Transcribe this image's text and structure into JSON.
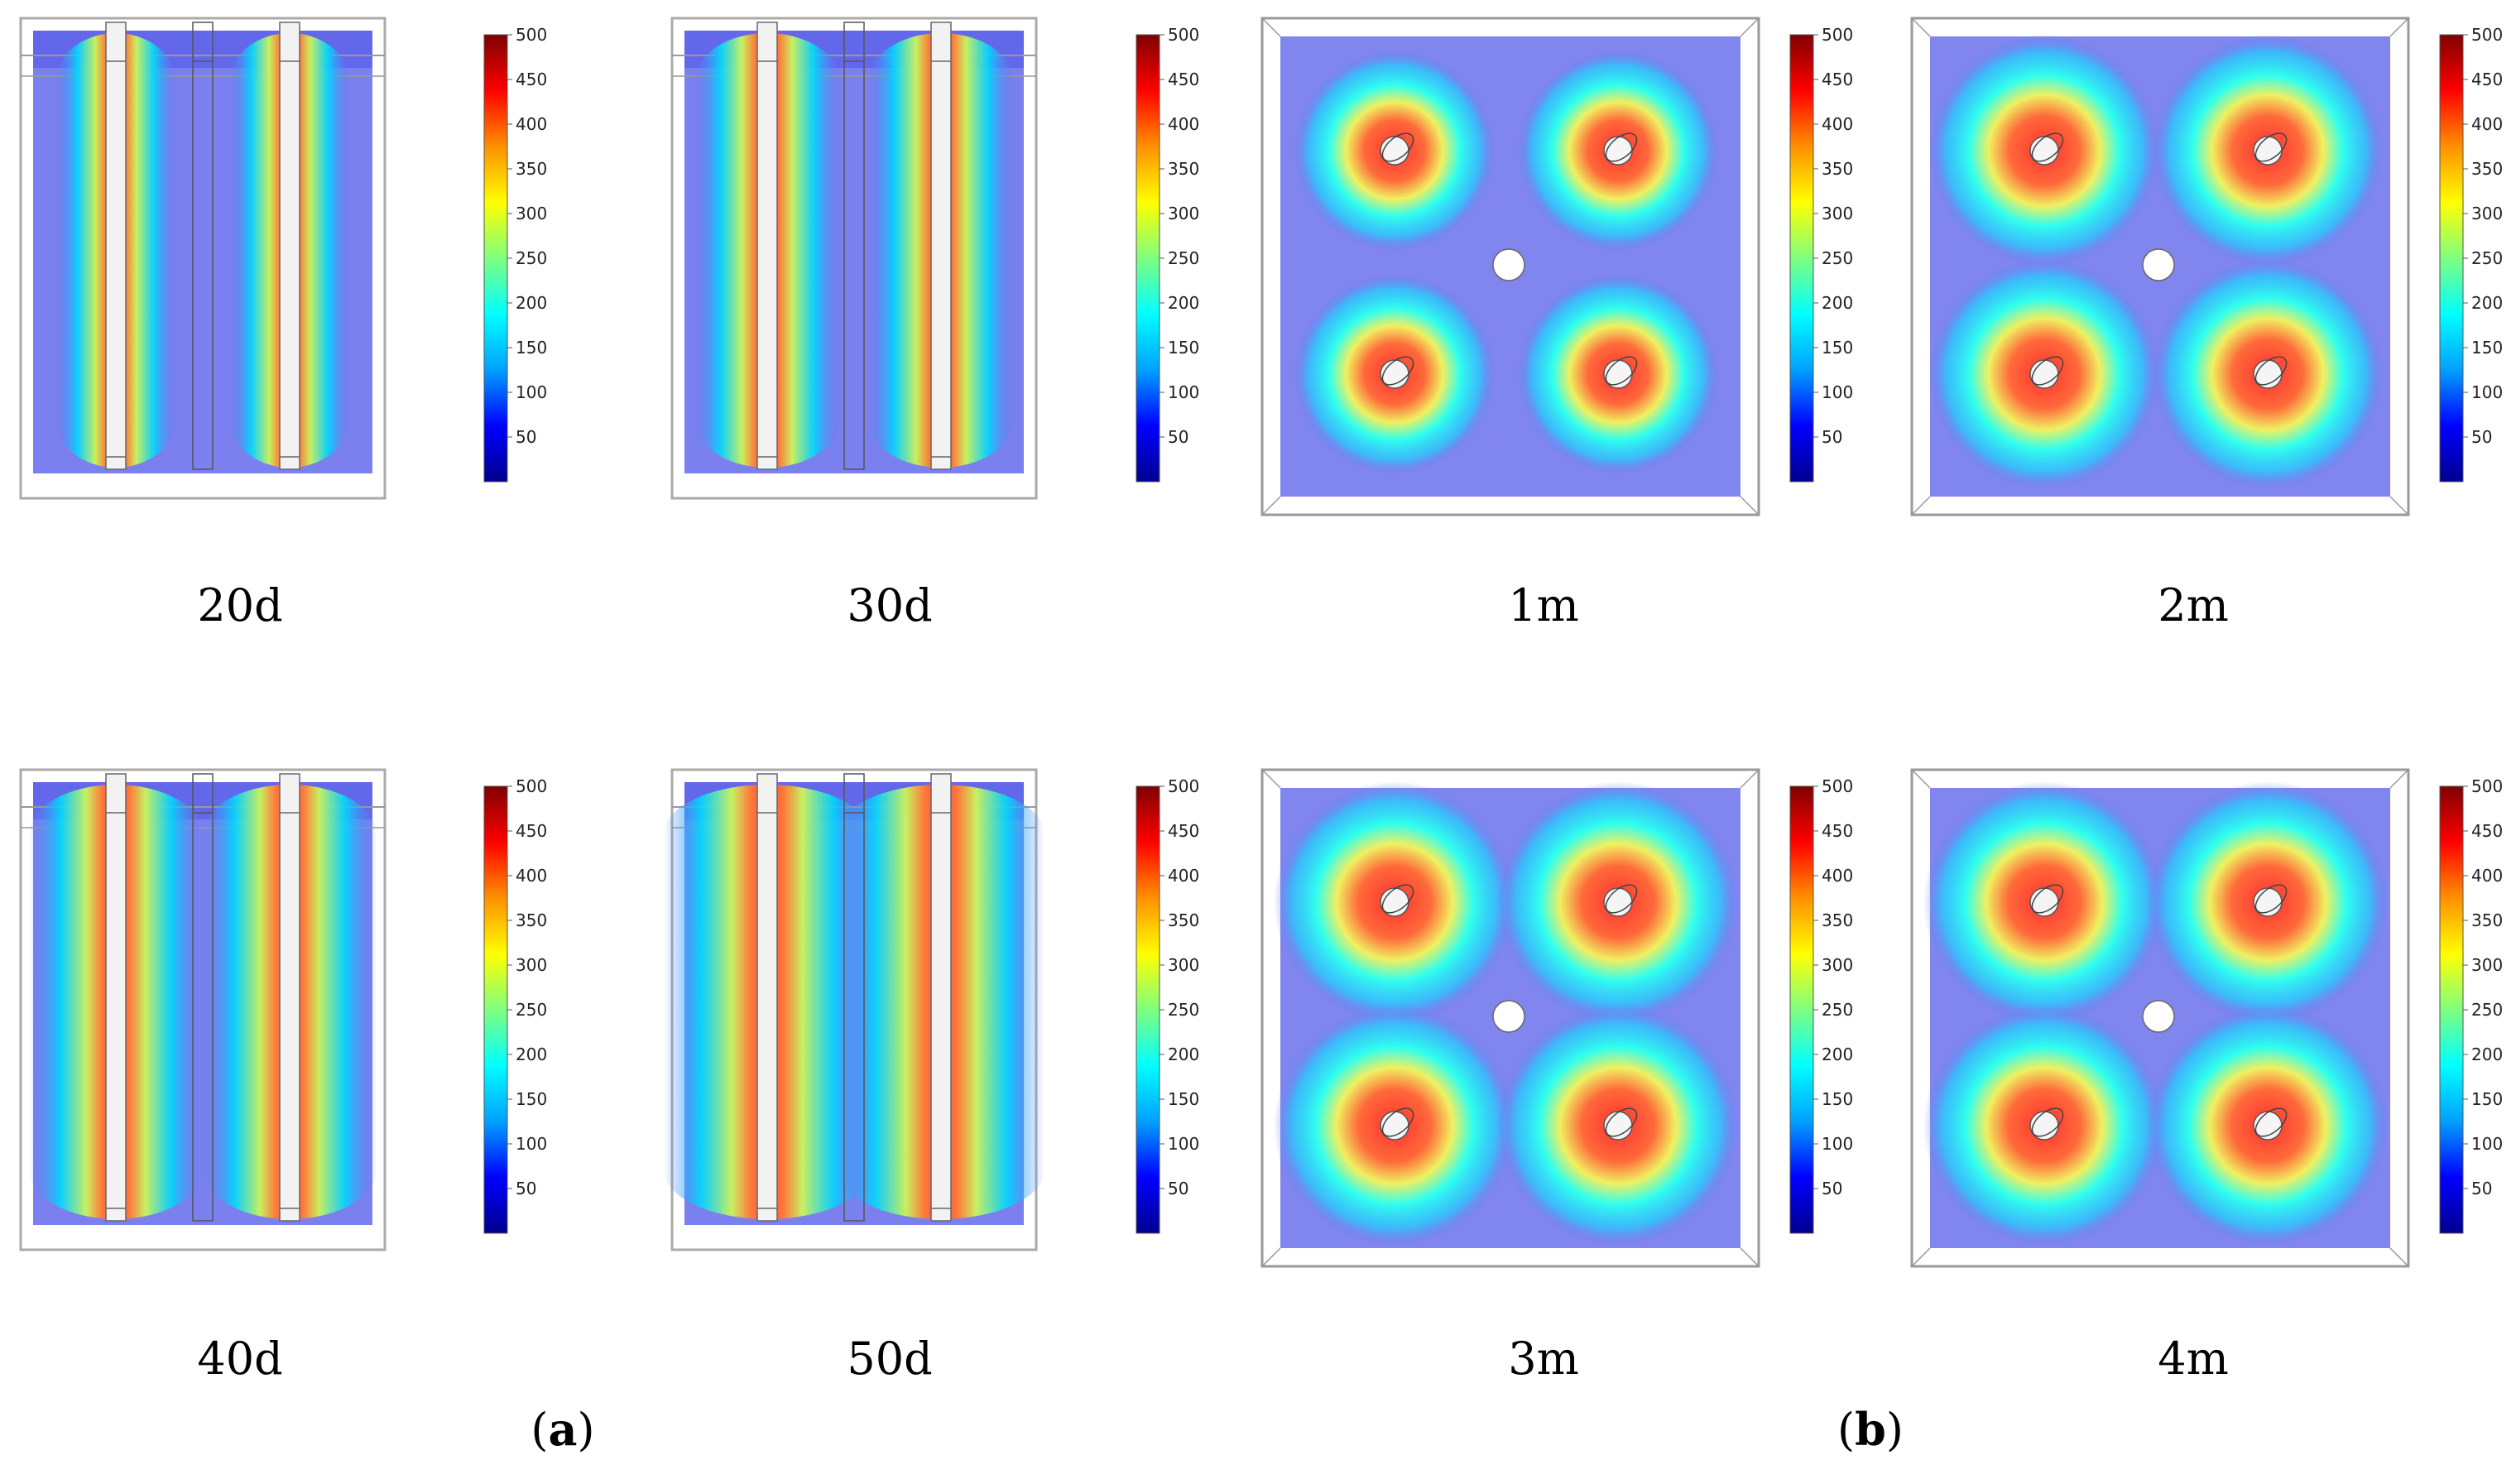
{
  "colorbar": {
    "ticks": [
      "500",
      "450",
      "400",
      "350",
      "300",
      "250",
      "200",
      "150",
      "100",
      "50"
    ],
    "range": [
      0,
      500
    ],
    "colormap": [
      "#00008f",
      "#0000ff",
      "#00a0ff",
      "#00ffff",
      "#7fff7f",
      "#ffff00",
      "#ff9000",
      "#ff0000",
      "#800000"
    ]
  },
  "panels": [
    {
      "caption": "20d",
      "view": "side",
      "group": "a",
      "spread": 0.35
    },
    {
      "caption": "30d",
      "view": "side",
      "group": "a",
      "spread": 0.55
    },
    {
      "caption": "1m",
      "view": "top",
      "group": "b",
      "spread": 0.45
    },
    {
      "caption": "2m",
      "view": "top",
      "group": "b",
      "spread": 0.75
    },
    {
      "caption": "40d",
      "view": "side",
      "group": "a",
      "spread": 0.75
    },
    {
      "caption": "50d",
      "view": "side",
      "group": "a",
      "spread": 1.0
    },
    {
      "caption": "3m",
      "view": "top",
      "group": "b",
      "spread": 0.85
    },
    {
      "caption": "4m",
      "view": "top",
      "group": "b",
      "spread": 0.85
    }
  ],
  "group_labels": {
    "a": "a",
    "b": "b"
  }
}
